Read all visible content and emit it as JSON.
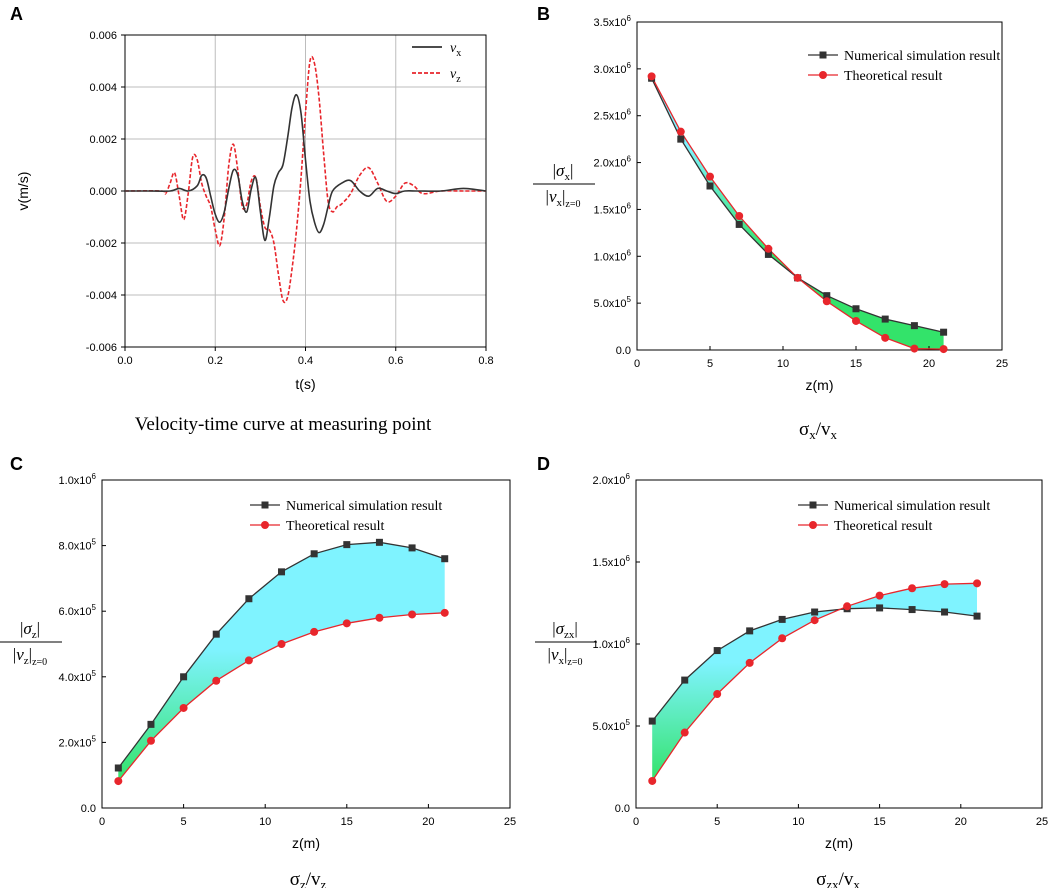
{
  "colors": {
    "numerical": "#333333",
    "theoretical": "#e8262c",
    "vx": "#333333",
    "vz": "#e8262c",
    "fill_low": "#33e36a",
    "fill_high": "#7ff3ff",
    "grid": "#bdbdbd"
  },
  "chart_data": [
    {
      "id": "A",
      "panel_label": "A",
      "type": "line",
      "caption": "Velocity-time curve at measuring point",
      "xlabel": "t(s)",
      "ylabel": "v(m/s)",
      "xlim": [
        0,
        0.8
      ],
      "ylim": [
        -0.006,
        0.006
      ],
      "xticks": [
        "0.0",
        "0.2",
        "0.4",
        "0.6",
        "0.8"
      ],
      "yticks": [
        "-0.006",
        "-0.004",
        "-0.002",
        "0.000",
        "0.002",
        "0.004",
        "0.006"
      ],
      "grid": true,
      "legend_position": "top-right",
      "series": [
        {
          "name": "v",
          "subscript": "x",
          "style": "solid",
          "t": [
            0.0,
            0.05,
            0.1,
            0.12,
            0.14,
            0.16,
            0.17,
            0.18,
            0.19,
            0.2,
            0.21,
            0.22,
            0.23,
            0.24,
            0.25,
            0.26,
            0.27,
            0.28,
            0.29,
            0.3,
            0.31,
            0.32,
            0.33,
            0.34,
            0.35,
            0.36,
            0.37,
            0.38,
            0.39,
            0.4,
            0.41,
            0.42,
            0.43,
            0.44,
            0.45,
            0.46,
            0.48,
            0.5,
            0.52,
            0.54,
            0.56,
            0.58,
            0.6,
            0.62,
            0.65,
            0.7,
            0.75,
            0.8
          ],
          "v": [
            0.0,
            0.0,
            0.0,
            0.0001,
            0.0,
            0.0002,
            0.0006,
            0.0005,
            -0.0002,
            -0.0009,
            -0.0012,
            -0.0008,
            0.0001,
            0.0008,
            0.0006,
            -0.0004,
            -0.0008,
            0.0001,
            0.0005,
            -0.0008,
            -0.0019,
            -0.001,
            0.0002,
            0.0007,
            0.001,
            0.002,
            0.0032,
            0.0037,
            0.003,
            0.0012,
            -0.0004,
            -0.0012,
            -0.0016,
            -0.0013,
            -0.0006,
            0.0,
            0.0003,
            0.0004,
            0.0,
            -0.0002,
            0.0001,
            0.0,
            -0.0001,
            0.0,
            0.0,
            0.0,
            0.0001,
            0.0
          ]
        },
        {
          "name": "v",
          "subscript": "z",
          "style": "dashed",
          "t": [
            0.0,
            0.08,
            0.09,
            0.1,
            0.11,
            0.12,
            0.13,
            0.14,
            0.15,
            0.16,
            0.17,
            0.18,
            0.19,
            0.2,
            0.21,
            0.22,
            0.23,
            0.24,
            0.25,
            0.26,
            0.27,
            0.28,
            0.29,
            0.3,
            0.31,
            0.32,
            0.33,
            0.34,
            0.35,
            0.36,
            0.37,
            0.38,
            0.39,
            0.4,
            0.41,
            0.42,
            0.43,
            0.44,
            0.45,
            0.46,
            0.47,
            0.48,
            0.5,
            0.52,
            0.54,
            0.56,
            0.58,
            0.6,
            0.62,
            0.64,
            0.66,
            0.7,
            0.75,
            0.8
          ],
          "v": [
            0.0,
            0.0,
            -0.0001,
            0.0003,
            0.0007,
            -0.0002,
            -0.0011,
            -0.0001,
            0.0013,
            0.0012,
            0.0003,
            -0.0002,
            -0.0006,
            -0.0015,
            -0.0021,
            -0.001,
            0.001,
            0.0018,
            0.0008,
            -0.0006,
            -0.0005,
            0.0004,
            0.0005,
            -0.0006,
            -0.0014,
            -0.0015,
            -0.002,
            -0.0032,
            -0.0042,
            -0.0041,
            -0.003,
            -0.0015,
            0.0005,
            0.003,
            0.005,
            0.0049,
            0.0036,
            0.0015,
            -0.0004,
            -0.0008,
            -0.0006,
            -0.0005,
            -0.0001,
            0.0006,
            0.0009,
            0.0003,
            -0.0004,
            -0.0002,
            0.0003,
            0.0002,
            -0.0001,
            0.0,
            0.0,
            0.0
          ]
        }
      ]
    },
    {
      "id": "B",
      "panel_label": "B",
      "type": "line",
      "caption_main": "σ",
      "caption_sub1": "x",
      "caption_mid": "/v",
      "caption_sub2": "x",
      "xlabel": "z(m)",
      "ylabel": {
        "sigma": "σ",
        "sigma_sub": "x",
        "v": "v",
        "v_sub": "x",
        "z_sub": "z=0"
      },
      "xlim": [
        0,
        25
      ],
      "ylim": [
        0,
        3500000
      ],
      "xticks": [
        "0",
        "5",
        "10",
        "15",
        "20",
        "25"
      ],
      "yticks": [
        {
          "mantissa": "0.0",
          "exp": ""
        },
        {
          "mantissa": "5.0x10",
          "exp": "5"
        },
        {
          "mantissa": "1.0x10",
          "exp": "6"
        },
        {
          "mantissa": "1.5x10",
          "exp": "6"
        },
        {
          "mantissa": "2.0x10",
          "exp": "6"
        },
        {
          "mantissa": "2.5x10",
          "exp": "6"
        },
        {
          "mantissa": "3.0x10",
          "exp": "6"
        },
        {
          "mantissa": "3.5x10",
          "exp": "6"
        }
      ],
      "legend_position": "top-right",
      "series": [
        {
          "name": "Numerical simulation result",
          "marker": "square",
          "x": [
            1,
            3,
            5,
            7,
            9,
            11,
            13,
            15,
            17,
            19,
            21
          ],
          "y": [
            2900000,
            2250000,
            1750000,
            1340000,
            1020000,
            770000,
            580000,
            440000,
            330000,
            260000,
            190000
          ]
        },
        {
          "name": "Theoretical result",
          "marker": "circle",
          "x": [
            1,
            3,
            5,
            7,
            9,
            11,
            13,
            15,
            17,
            19,
            21
          ],
          "y": [
            2920000,
            2330000,
            1850000,
            1430000,
            1080000,
            770000,
            520000,
            310000,
            130000,
            15000,
            10000
          ]
        }
      ]
    },
    {
      "id": "C",
      "panel_label": "C",
      "type": "line",
      "caption_main": "σ",
      "caption_sub1": "z",
      "caption_mid": "/v",
      "caption_sub2": "z",
      "xlabel": "z(m)",
      "ylabel": {
        "sigma": "σ",
        "sigma_sub": "z",
        "v": "v",
        "v_sub": "z",
        "z_sub": "z=0"
      },
      "xlim": [
        0,
        25
      ],
      "ylim": [
        0,
        1000000
      ],
      "xticks": [
        "0",
        "5",
        "10",
        "15",
        "20",
        "25"
      ],
      "yticks": [
        {
          "mantissa": "0.0",
          "exp": ""
        },
        {
          "mantissa": "2.0x10",
          "exp": "5"
        },
        {
          "mantissa": "4.0x10",
          "exp": "5"
        },
        {
          "mantissa": "6.0x10",
          "exp": "5"
        },
        {
          "mantissa": "8.0x10",
          "exp": "5"
        },
        {
          "mantissa": "1.0x10",
          "exp": "6"
        }
      ],
      "legend_position": "top-right",
      "series": [
        {
          "name": "Numerical simulation result",
          "marker": "square",
          "x": [
            1,
            3,
            5,
            7,
            9,
            11,
            13,
            15,
            17,
            19,
            21
          ],
          "y": [
            122000,
            255000,
            400000,
            530000,
            638000,
            720000,
            775000,
            803000,
            810000,
            793000,
            760000
          ]
        },
        {
          "name": "Theoretical result",
          "marker": "circle",
          "x": [
            1,
            3,
            5,
            7,
            9,
            11,
            13,
            15,
            17,
            19,
            21
          ],
          "y": [
            82000,
            205000,
            305000,
            388000,
            450000,
            500000,
            537000,
            563000,
            580000,
            590000,
            595000
          ]
        }
      ]
    },
    {
      "id": "D",
      "panel_label": "D",
      "type": "line",
      "caption_main": "σ",
      "caption_sub1": "zx",
      "caption_mid": "/v",
      "caption_sub2": "x",
      "xlabel": "z(m)",
      "ylabel": {
        "sigma": "σ",
        "sigma_sub": "zx",
        "v": "v",
        "v_sub": "x",
        "z_sub": "z=0"
      },
      "xlim": [
        0,
        25
      ],
      "ylim": [
        0,
        2000000
      ],
      "xticks": [
        "0",
        "5",
        "10",
        "15",
        "20",
        "25"
      ],
      "yticks": [
        {
          "mantissa": "0.0",
          "exp": ""
        },
        {
          "mantissa": "5.0x10",
          "exp": "5"
        },
        {
          "mantissa": "1.0x10",
          "exp": "6"
        },
        {
          "mantissa": "1.5x10",
          "exp": "6"
        },
        {
          "mantissa": "2.0x10",
          "exp": "6"
        }
      ],
      "legend_position": "top-right",
      "series": [
        {
          "name": "Numerical simulation result",
          "marker": "square",
          "x": [
            1,
            3,
            5,
            7,
            9,
            11,
            13,
            15,
            17,
            19,
            21
          ],
          "y": [
            530000,
            780000,
            960000,
            1080000,
            1150000,
            1195000,
            1215000,
            1220000,
            1210000,
            1195000,
            1170000
          ]
        },
        {
          "name": "Theoretical result",
          "marker": "circle",
          "x": [
            1,
            3,
            5,
            7,
            9,
            11,
            13,
            15,
            17,
            19,
            21
          ],
          "y": [
            165000,
            460000,
            695000,
            885000,
            1035000,
            1145000,
            1230000,
            1295000,
            1340000,
            1365000,
            1370000
          ]
        }
      ]
    }
  ]
}
